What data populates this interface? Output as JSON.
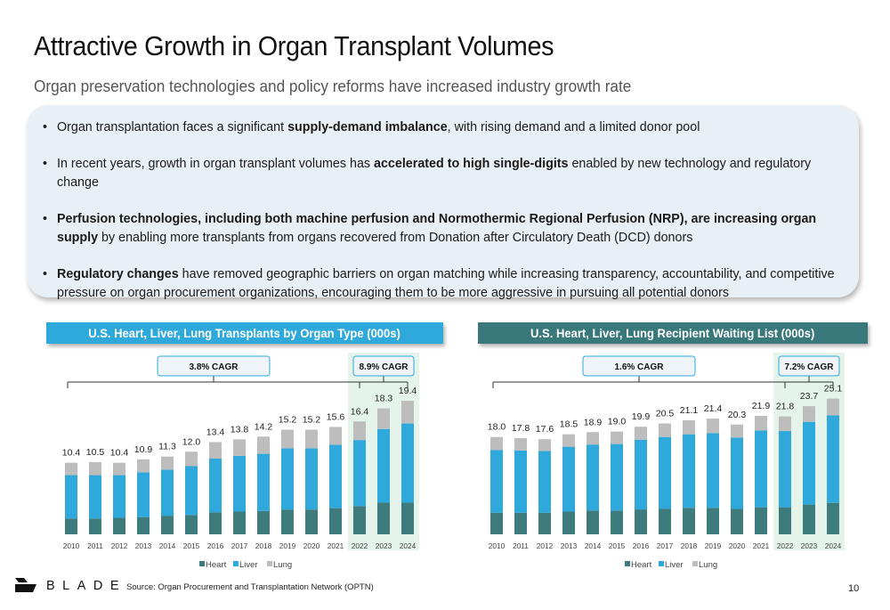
{
  "header": {
    "title": "Attractive Growth in Organ Transplant Volumes",
    "subtitle": "Organ preservation technologies and policy reforms have increased industry growth rate"
  },
  "bullets": [
    {
      "parts": [
        {
          "t": "Organ transplantation faces a significant ",
          "b": false
        },
        {
          "t": "supply-demand imbalance",
          "b": true
        },
        {
          "t": ", with rising demand and a limited donor pool",
          "b": false
        }
      ]
    },
    {
      "parts": [
        {
          "t": "In recent years, growth in organ transplant volumes has ",
          "b": false
        },
        {
          "t": "accelerated to high single-digits",
          "b": true
        },
        {
          "t": " enabled by new technology and regulatory change",
          "b": false
        }
      ]
    },
    {
      "parts": [
        {
          "t": "Perfusion technologies, including both machine perfusion and Normothermic Regional Perfusion (NRP), are increasing organ supply",
          "b": true
        },
        {
          "t": " by enabling more transplants from organs recovered from Donation after Circulatory Death (DCD) donors",
          "b": false
        }
      ]
    },
    {
      "parts": [
        {
          "t": "Regulatory changes",
          "b": true
        },
        {
          "t": " have removed geographic barriers on organ matching while increasing transparency, accountability, and competitive pressure on organ procurement organizations, encouraging them to be more aggressive in pursuing all potential donors",
          "b": false
        }
      ]
    }
  ],
  "chart_data": [
    {
      "type": "bar",
      "stacked": true,
      "title": "U.S. Heart, Liver, Lung Transplants by Organ Type (000s)",
      "categories": [
        "2010",
        "2011",
        "2012",
        "2013",
        "2014",
        "2015",
        "2016",
        "2017",
        "2018",
        "2019",
        "2020",
        "2021",
        "2022",
        "2023",
        "2024"
      ],
      "totals": [
        10.4,
        10.5,
        10.4,
        10.9,
        11.3,
        12.0,
        13.4,
        13.8,
        14.2,
        15.2,
        15.2,
        15.6,
        16.4,
        18.3,
        19.4
      ],
      "series": [
        {
          "name": "Heart",
          "values": [
            2.3,
            2.3,
            2.4,
            2.5,
            2.7,
            2.8,
            3.2,
            3.3,
            3.4,
            3.6,
            3.6,
            3.8,
            4.1,
            4.6,
            4.6
          ]
        },
        {
          "name": "Liver",
          "values": [
            6.3,
            6.3,
            6.2,
            6.5,
            6.7,
            7.1,
            7.8,
            8.1,
            8.3,
            8.9,
            8.9,
            9.2,
            9.6,
            10.7,
            11.5
          ]
        },
        {
          "name": "Lung",
          "values": [
            1.8,
            1.9,
            1.8,
            1.9,
            1.9,
            2.1,
            2.4,
            2.4,
            2.5,
            2.7,
            2.7,
            2.6,
            2.7,
            3.0,
            3.3
          ]
        }
      ],
      "ylim": [
        0,
        22
      ],
      "cagr": [
        {
          "label": "3.8% CAGR",
          "from": "2010",
          "to": "2022"
        },
        {
          "label": "8.9% CAGR",
          "from": "2022",
          "to": "2024"
        }
      ],
      "highlight": [
        "2022",
        "2024"
      ],
      "legend": "bottom"
    },
    {
      "type": "bar",
      "stacked": true,
      "title": "U.S. Heart, Liver, Lung Recipient Waiting List (000s)",
      "categories": [
        "2010",
        "2011",
        "2012",
        "2013",
        "2014",
        "2015",
        "2016",
        "2017",
        "2018",
        "2019",
        "2020",
        "2021",
        "2022",
        "2023",
        "2024"
      ],
      "totals": [
        18.0,
        17.8,
        17.6,
        18.5,
        18.9,
        19.0,
        19.9,
        20.5,
        21.1,
        21.4,
        20.3,
        21.9,
        21.8,
        23.7,
        25.1
      ],
      "series": [
        {
          "name": "Heart",
          "values": [
            4.0,
            4.0,
            4.0,
            4.2,
            4.4,
            4.4,
            4.6,
            4.7,
            4.9,
            4.9,
            4.7,
            5.0,
            5.0,
            5.5,
            5.8
          ]
        },
        {
          "name": "Liver",
          "values": [
            11.6,
            11.5,
            11.4,
            12.0,
            12.2,
            12.3,
            12.9,
            13.3,
            13.6,
            13.8,
            13.2,
            14.2,
            14.1,
            15.3,
            16.2
          ]
        },
        {
          "name": "Lung",
          "values": [
            2.4,
            2.3,
            2.2,
            2.3,
            2.3,
            2.3,
            2.4,
            2.5,
            2.6,
            2.7,
            2.4,
            2.7,
            2.7,
            2.9,
            3.1
          ]
        }
      ],
      "ylim": [
        0,
        28
      ],
      "cagr": [
        {
          "label": "1.6% CAGR",
          "from": "2010",
          "to": "2022"
        },
        {
          "label": "7.2% CAGR",
          "from": "2022",
          "to": "2024"
        }
      ],
      "highlight": [
        "2022",
        "2024"
      ],
      "legend": "bottom"
    }
  ],
  "colors": {
    "heart": "#3e7b7d",
    "liver": "#2fa9db",
    "lung": "#bdbdbd",
    "highlight": "#e4f4ea",
    "header_left": "#2fa9db",
    "header_right": "#39787b",
    "cagr_box_fill": "#eef4f8",
    "cagr_box_stroke": "#2fa9db"
  },
  "footer": {
    "brand": "BLADE",
    "source": "Source: Organ Procurement and Transplantation Network (OPTN)",
    "page": "10"
  }
}
